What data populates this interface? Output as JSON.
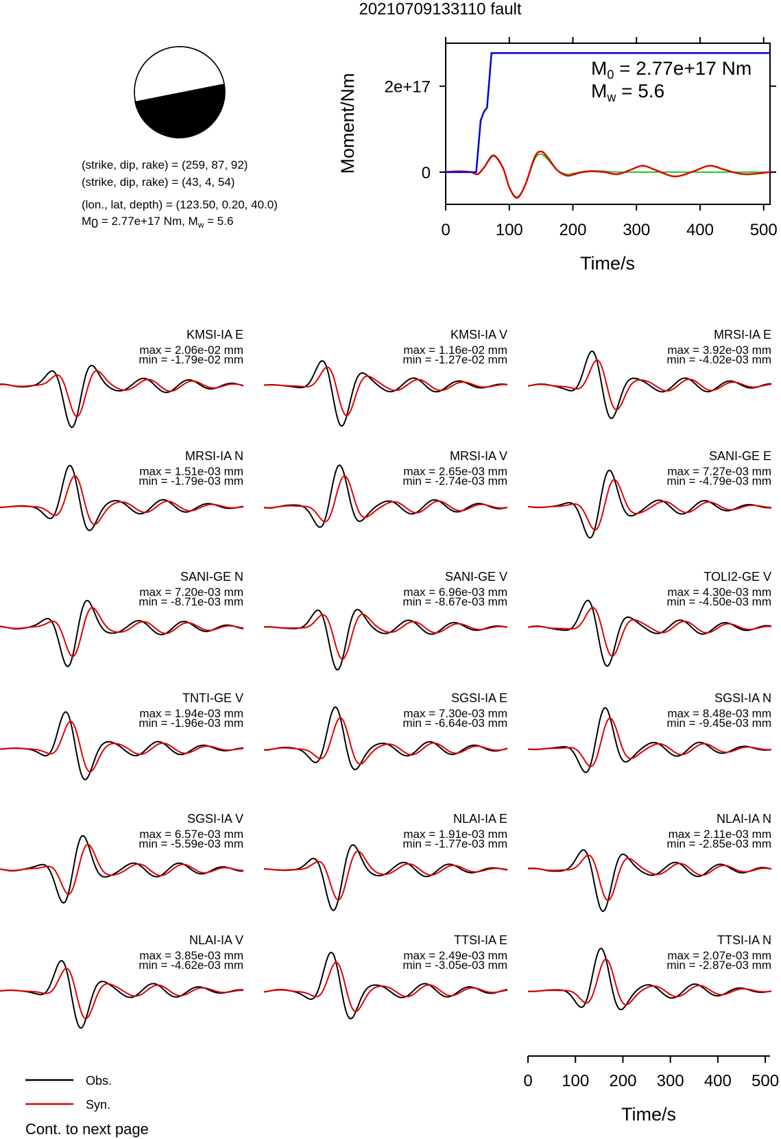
{
  "title": "20210709133110 fault",
  "source_info": {
    "line1": "(strike, dip, rake) = (259, 87, 92)",
    "line2": "(strike, dip, rake) = (43, 4, 54)",
    "line3": "(lon., lat, depth) = (123.50, 0.20, 40.0)",
    "line4_prefix": "M",
    "line4_sub": "0",
    "line4_rest": " = 2.77e+17 Nm, M",
    "line4_sub2": "w",
    "line4_end": " = 5.6"
  },
  "colors": {
    "obs": "#000000",
    "syn": "#dd0000",
    "moment": "#0000cc",
    "stf": "#22cc22"
  },
  "chart_data": [
    {
      "type": "line",
      "name": "moment_panel",
      "xlabel": "Time/s",
      "ylabel": "Moment/Nm",
      "x_ticks": [
        "0",
        "100",
        "200",
        "300",
        "400",
        "500"
      ],
      "y_ticks": [
        "0",
        "2e+17"
      ],
      "xlim": [
        0,
        510
      ],
      "ylim": [
        -7.5e+16,
        3e+17
      ],
      "annotation": {
        "m0_prefix": "M",
        "m0_sub": "0",
        "m0_rest": " = 2.77e+17 Nm",
        "mw_prefix": "M",
        "mw_sub": "w",
        "mw_rest": " = 5.6"
      },
      "moment_curve": {
        "x": [
          0,
          48,
          55,
          60,
          65,
          72,
          510
        ],
        "y": [
          0,
          0,
          1.2e+17,
          1.4e+17,
          1.5e+17,
          2.77e+17,
          2.77e+17
        ]
      },
      "stf_curve": {
        "note_free": true,
        "x": [
          0,
          20,
          40,
          50,
          60,
          75,
          90,
          100,
          112,
          125,
          140,
          150,
          160,
          175,
          190,
          200,
          215,
          230,
          250,
          270,
          300,
          330,
          360,
          400,
          450,
          510
        ],
        "y": [
          0,
          1000000000000000.0,
          0,
          -5000000000000000.0,
          1e+16,
          4e+16,
          1e+16,
          -3.5e+16,
          -5.8e+16,
          -3e+16,
          3e+16,
          4.2e+16,
          3e+16,
          5000000000000000.0,
          -5000000000000000.0,
          -3000000000000000.0,
          1000000000000000.0,
          3000000000000000.0,
          2000000000000000.0,
          0,
          0,
          0,
          0,
          0,
          0,
          0
        ]
      },
      "syn_curve": {
        "x": [
          0,
          20,
          40,
          50,
          60,
          75,
          90,
          100,
          112,
          125,
          140,
          150,
          160,
          175,
          190,
          200,
          215,
          230,
          250,
          270,
          290,
          310,
          330,
          360,
          390,
          415,
          440,
          470,
          510
        ],
        "y": [
          0,
          2000000000000000.0,
          0,
          -5000000000000000.0,
          1e+16,
          3.8e+16,
          1e+16,
          -3.5e+16,
          -6e+16,
          -3e+16,
          3.5e+16,
          4.8e+16,
          3.5e+16,
          5000000000000000.0,
          -8000000000000000.0,
          -6000000000000000.0,
          0,
          2000000000000000.0,
          0,
          -5000000000000000.0,
          5000000000000000.0,
          1.5e+16,
          5000000000000000.0,
          -1e+16,
          2000000000000000.0,
          1.5e+16,
          5000000000000000.0,
          -5000000000000000.0,
          0
        ]
      }
    }
  ],
  "bottom_axis": {
    "xlabel": "Time/s",
    "x_ticks": [
      "0",
      "100",
      "200",
      "300",
      "400",
      "500"
    ],
    "xlim": [
      0,
      510
    ]
  },
  "stations": [
    {
      "name": "KMSI-IA E",
      "max": "max = 2.06e-02 mm",
      "min": "min = -1.79e-02 mm"
    },
    {
      "name": "KMSI-IA V",
      "max": "max = 1.16e-02 mm",
      "min": "min = -1.27e-02 mm"
    },
    {
      "name": "MRSI-IA E",
      "max": "max = 3.92e-03 mm",
      "min": "min = -4.02e-03 mm"
    },
    {
      "name": "MRSI-IA N",
      "max": "max = 1.51e-03 mm",
      "min": "min = -1.79e-03 mm"
    },
    {
      "name": "MRSI-IA V",
      "max": "max = 2.65e-03 mm",
      "min": "min = -2.74e-03 mm"
    },
    {
      "name": "SANI-GE E",
      "max": "max = 7.27e-03 mm",
      "min": "min = -4.79e-03 mm"
    },
    {
      "name": "SANI-GE N",
      "max": "max = 7.20e-03 mm",
      "min": "min = -8.71e-03 mm"
    },
    {
      "name": "SANI-GE V",
      "max": "max = 6.96e-03 mm",
      "min": "min = -8.67e-03 mm"
    },
    {
      "name": "TOLI2-GE V",
      "max": "max = 4.30e-03 mm",
      "min": "min = -4.50e-03 mm"
    },
    {
      "name": "TNTI-GE V",
      "max": "max = 1.94e-03 mm",
      "min": "min = -1.96e-03 mm"
    },
    {
      "name": "SGSI-IA E",
      "max": "max = 7.30e-03 mm",
      "min": "min = -6.64e-03 mm"
    },
    {
      "name": "SGSI-IA N",
      "max": "max = 8.48e-03 mm",
      "min": "min = -9.45e-03 mm"
    },
    {
      "name": "SGSI-IA V",
      "max": "max = 6.57e-03 mm",
      "min": "min = -5.59e-03 mm"
    },
    {
      "name": "NLAI-IA E",
      "max": "max = 1.91e-03 mm",
      "min": "min = -1.77e-03 mm"
    },
    {
      "name": "NLAI-IA N",
      "max": "max = 2.11e-03 mm",
      "min": "min = -2.85e-03 mm"
    },
    {
      "name": "NLAI-IA V",
      "max": "max = 3.85e-03 mm",
      "min": "min = -4.62e-03 mm"
    },
    {
      "name": "TTSI-IA E",
      "max": "max = 2.49e-03 mm",
      "min": "min = -3.05e-03 mm"
    },
    {
      "name": "TTSI-IA N",
      "max": "max = 2.07e-03 mm",
      "min": "min = -2.87e-03 mm"
    }
  ],
  "legend": {
    "obs": "Obs.",
    "syn": "Syn."
  },
  "footer": "Cont. to next page"
}
